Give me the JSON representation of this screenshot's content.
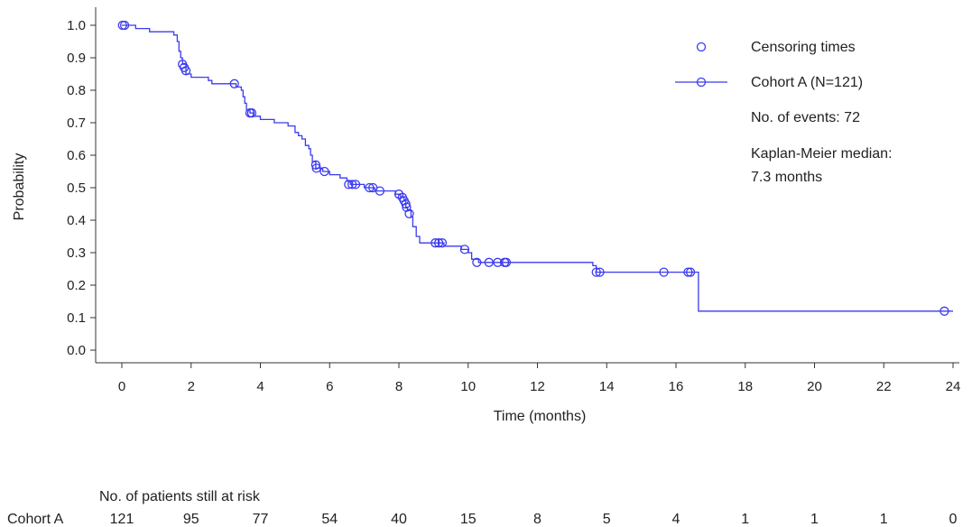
{
  "chart_data": {
    "type": "line",
    "subtype": "kaplan-meier",
    "xlabel": "Time (months)",
    "ylabel": "Probability",
    "xlim": [
      0,
      24
    ],
    "ylim": [
      0,
      1
    ],
    "x_ticks": [
      0,
      2,
      4,
      6,
      8,
      10,
      12,
      14,
      16,
      18,
      20,
      22,
      24
    ],
    "y_ticks": [
      0.0,
      0.1,
      0.2,
      0.3,
      0.4,
      0.5,
      0.6,
      0.7,
      0.8,
      0.9,
      1.0
    ],
    "x_tick_labels": [
      "0",
      "2",
      "4",
      "6",
      "8",
      "10",
      "12",
      "14",
      "16",
      "18",
      "20",
      "22",
      "24"
    ],
    "y_tick_labels": [
      "0.0",
      "0.1",
      "0.2",
      "0.3",
      "0.4",
      "0.5",
      "0.6",
      "0.7",
      "0.8",
      "0.9",
      "1.0"
    ],
    "grid": false,
    "legend_position": "top-right",
    "colors": {
      "series": "#3b3bf0",
      "axis": "#333333"
    },
    "legend": {
      "censoring_label": "Censoring times",
      "series_label": "Cohort A (N=121)",
      "events_text": "No. of events: 72",
      "median_line1": "Kaplan-Meier median:",
      "median_line2": "7.3 months"
    },
    "series": [
      {
        "name": "Cohort A (N=121)",
        "steps": [
          [
            0,
            1.0
          ],
          [
            0.4,
            0.99
          ],
          [
            0.8,
            0.98
          ],
          [
            1.5,
            0.97
          ],
          [
            1.6,
            0.95
          ],
          [
            1.65,
            0.92
          ],
          [
            1.7,
            0.9
          ],
          [
            1.75,
            0.88
          ],
          [
            1.85,
            0.85
          ],
          [
            2.0,
            0.84
          ],
          [
            2.5,
            0.83
          ],
          [
            2.6,
            0.82
          ],
          [
            3.3,
            0.81
          ],
          [
            3.45,
            0.8
          ],
          [
            3.5,
            0.78
          ],
          [
            3.55,
            0.76
          ],
          [
            3.6,
            0.74
          ],
          [
            3.7,
            0.73
          ],
          [
            3.8,
            0.72
          ],
          [
            4.0,
            0.71
          ],
          [
            4.4,
            0.7
          ],
          [
            4.8,
            0.69
          ],
          [
            5.0,
            0.67
          ],
          [
            5.1,
            0.66
          ],
          [
            5.2,
            0.65
          ],
          [
            5.3,
            0.63
          ],
          [
            5.4,
            0.62
          ],
          [
            5.45,
            0.6
          ],
          [
            5.5,
            0.58
          ],
          [
            5.6,
            0.56
          ],
          [
            5.8,
            0.55
          ],
          [
            6.0,
            0.54
          ],
          [
            6.3,
            0.53
          ],
          [
            6.5,
            0.52
          ],
          [
            6.6,
            0.51
          ],
          [
            7.0,
            0.5
          ],
          [
            7.3,
            0.49
          ],
          [
            7.9,
            0.48
          ],
          [
            8.05,
            0.47
          ],
          [
            8.15,
            0.46
          ],
          [
            8.2,
            0.44
          ],
          [
            8.25,
            0.43
          ],
          [
            8.35,
            0.41
          ],
          [
            8.4,
            0.38
          ],
          [
            8.5,
            0.35
          ],
          [
            8.6,
            0.33
          ],
          [
            9.1,
            0.33
          ],
          [
            9.3,
            0.32
          ],
          [
            9.8,
            0.31
          ],
          [
            10.0,
            0.3
          ],
          [
            10.1,
            0.28
          ],
          [
            10.3,
            0.27
          ],
          [
            13.6,
            0.26
          ],
          [
            13.7,
            0.24
          ],
          [
            16.6,
            0.24
          ],
          [
            16.65,
            0.12
          ],
          [
            24.0,
            0.12
          ]
        ],
        "censored": [
          [
            0.02,
            1.0
          ],
          [
            0.08,
            1.0
          ],
          [
            1.75,
            0.88
          ],
          [
            1.8,
            0.87
          ],
          [
            1.85,
            0.86
          ],
          [
            3.25,
            0.82
          ],
          [
            3.7,
            0.73
          ],
          [
            3.75,
            0.73
          ],
          [
            5.6,
            0.57
          ],
          [
            5.62,
            0.56
          ],
          [
            5.85,
            0.55
          ],
          [
            6.55,
            0.51
          ],
          [
            6.65,
            0.51
          ],
          [
            6.75,
            0.51
          ],
          [
            7.15,
            0.5
          ],
          [
            7.25,
            0.5
          ],
          [
            7.45,
            0.49
          ],
          [
            8.0,
            0.48
          ],
          [
            8.1,
            0.47
          ],
          [
            8.15,
            0.46
          ],
          [
            8.2,
            0.45
          ],
          [
            8.22,
            0.44
          ],
          [
            8.3,
            0.42
          ],
          [
            9.05,
            0.33
          ],
          [
            9.15,
            0.33
          ],
          [
            9.25,
            0.33
          ],
          [
            9.9,
            0.31
          ],
          [
            10.25,
            0.27
          ],
          [
            10.6,
            0.27
          ],
          [
            10.85,
            0.27
          ],
          [
            11.05,
            0.27
          ],
          [
            11.1,
            0.27
          ],
          [
            13.7,
            0.24
          ],
          [
            13.8,
            0.24
          ],
          [
            15.65,
            0.24
          ],
          [
            16.35,
            0.24
          ],
          [
            16.42,
            0.24
          ],
          [
            23.75,
            0.12
          ]
        ]
      }
    ],
    "risk_table": {
      "title": "No. of patients still at risk",
      "row_label": "Cohort A",
      "times": [
        0,
        2,
        4,
        6,
        8,
        10,
        12,
        14,
        16,
        18,
        20,
        22,
        24
      ],
      "counts": [
        "121",
        "95",
        "77",
        "54",
        "40",
        "15",
        "8",
        "5",
        "4",
        "1",
        "1",
        "1",
        "0"
      ]
    }
  }
}
